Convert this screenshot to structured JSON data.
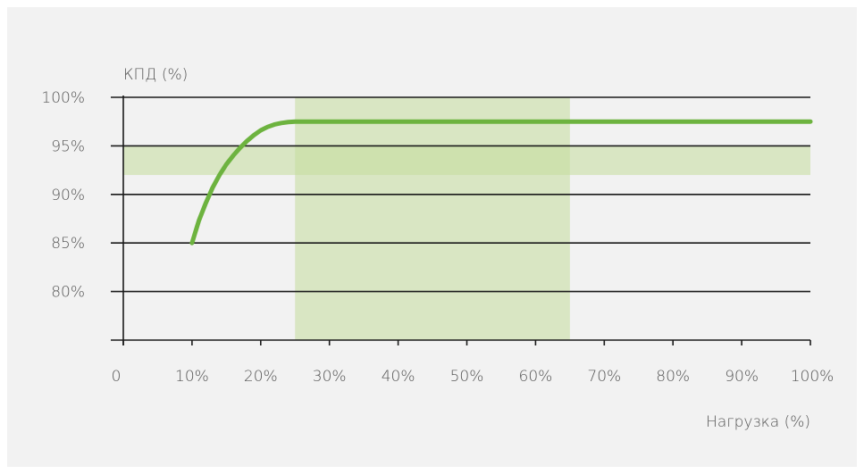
{
  "chart_data": {
    "type": "line",
    "ylabel": "КПД (%)",
    "xlabel": "Нагрузка (%)",
    "x_ticks": [
      "0",
      "10%",
      "20%",
      "30%",
      "40%",
      "50%",
      "60%",
      "70%",
      "80%",
      "90%",
      "100%"
    ],
    "y_ticks": [
      "100%",
      "95%",
      "90%",
      "85%",
      "80%"
    ],
    "xlim": [
      0,
      100
    ],
    "ylim": [
      75,
      100
    ],
    "grid": "horizontal",
    "series": [
      {
        "x": [
          10,
          11,
          12,
          13,
          14,
          15,
          16,
          17,
          18,
          19,
          20,
          21,
          22,
          23,
          24,
          25,
          30,
          40,
          50,
          60,
          70,
          80,
          90,
          100
        ],
        "y": [
          85,
          87.3,
          89.1,
          90.7,
          92.0,
          93.1,
          94.0,
          94.8,
          95.5,
          96.1,
          96.6,
          96.95,
          97.2,
          97.35,
          97.45,
          97.5,
          97.5,
          97.5,
          97.5,
          97.5,
          97.5,
          97.5,
          97.5,
          97.5
        ],
        "color": "#6db33f"
      }
    ],
    "bands": [
      {
        "axis": "x",
        "from": 25,
        "to": 65,
        "color": "#c5dc9c"
      },
      {
        "axis": "y",
        "from": 92,
        "to": 95,
        "color": "#c5dc9c"
      }
    ]
  }
}
